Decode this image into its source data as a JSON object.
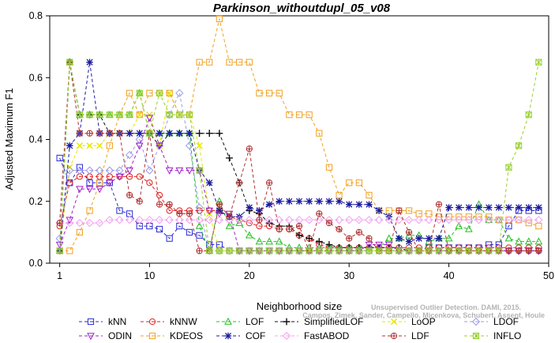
{
  "chart_data": {
    "type": "line",
    "title": "Parkinson_withoutdupl_05_v08",
    "xlabel": "Neighborhood size",
    "ylabel": "Adjusted Maximum F1",
    "xlim": [
      0,
      50
    ],
    "ylim": [
      0,
      0.8
    ],
    "x_ticks": [
      1,
      10,
      20,
      30,
      40,
      50
    ],
    "y_ticks": [
      0.0,
      0.2,
      0.4,
      0.6,
      0.8
    ],
    "grid": false,
    "legend_position": "bottom",
    "credit_line1": "Unsupervised Outlier Detection. DAMI, 2015.",
    "credit_line2": "Campos, Zimek, Sander, Campello, Micenkova, Schubert, Assent, Houle",
    "series": [
      {
        "name": "kNN",
        "color": "#2a2ad4",
        "marker": "square",
        "x": [
          1,
          2,
          3,
          4,
          5,
          6,
          7,
          8,
          9,
          10,
          11,
          12,
          13,
          14,
          15,
          16,
          17,
          18,
          19,
          20,
          21,
          22,
          23,
          24,
          25,
          26,
          27,
          28,
          29,
          30,
          31,
          32,
          33,
          34,
          35,
          36,
          37,
          38,
          39,
          40,
          41,
          42,
          43,
          44,
          45,
          46,
          47,
          48,
          49
        ],
        "y": [
          0.34,
          0.26,
          0.31,
          0.26,
          0.26,
          0.26,
          0.17,
          0.16,
          0.12,
          0.12,
          0.11,
          0.08,
          0.12,
          0.1,
          0.09,
          0.06,
          0.06,
          0.04,
          0.04,
          0.04,
          0.04,
          0.04,
          0.04,
          0.04,
          0.04,
          0.04,
          0.04,
          0.04,
          0.04,
          0.04,
          0.04,
          0.04,
          0.04,
          0.04,
          0.04,
          0.04,
          0.04,
          0.05,
          0.05,
          0.05,
          0.05,
          0.05,
          0.05,
          0.06,
          0.06,
          0.12,
          0.17,
          0.17,
          0.17
        ]
      },
      {
        "name": "kNNW",
        "color": "#e02020",
        "marker": "circle",
        "x": [
          1,
          2,
          3,
          4,
          5,
          6,
          7,
          8,
          9,
          10,
          11,
          12,
          13,
          14,
          15,
          16,
          17,
          18,
          19,
          20,
          21,
          22,
          23,
          24,
          25,
          26,
          27,
          28,
          29,
          30,
          31,
          32,
          33,
          34,
          35,
          36,
          37,
          38,
          39,
          40,
          41,
          42,
          43,
          44,
          45,
          46,
          47,
          48,
          49
        ],
        "y": [
          0.12,
          0.26,
          0.28,
          0.28,
          0.28,
          0.28,
          0.28,
          0.28,
          0.28,
          0.26,
          0.22,
          0.17,
          0.17,
          0.17,
          0.17,
          0.17,
          0.17,
          0.15,
          0.14,
          0.13,
          0.12,
          0.12,
          0.11,
          0.11,
          0.09,
          0.08,
          0.06,
          0.05,
          0.05,
          0.05,
          0.05,
          0.05,
          0.05,
          0.05,
          0.05,
          0.05,
          0.05,
          0.05,
          0.05,
          0.05,
          0.05,
          0.05,
          0.05,
          0.05,
          0.05,
          0.05,
          0.05,
          0.05,
          0.05
        ]
      },
      {
        "name": "LOF",
        "color": "#20c020",
        "marker": "triangle",
        "x": [
          1,
          2,
          3,
          4,
          5,
          6,
          7,
          8,
          9,
          10,
          11,
          12,
          13,
          14,
          15,
          16,
          17,
          18,
          19,
          20,
          21,
          22,
          23,
          24,
          25,
          26,
          27,
          28,
          29,
          30,
          31,
          32,
          33,
          34,
          35,
          36,
          37,
          38,
          39,
          40,
          41,
          42,
          43,
          44,
          45,
          46,
          47,
          48,
          49
        ],
        "y": [
          0.04,
          0.65,
          0.48,
          0.48,
          0.48,
          0.48,
          0.48,
          0.48,
          0.55,
          0.42,
          0.42,
          0.42,
          0.42,
          0.42,
          0.12,
          0.04,
          0.2,
          0.12,
          0.13,
          0.09,
          0.07,
          0.07,
          0.07,
          0.05,
          0.05,
          0.05,
          0.05,
          0.05,
          0.05,
          0.05,
          0.05,
          0.05,
          0.05,
          0.08,
          0.08,
          0.09,
          0.09,
          0.07,
          0.08,
          0.08,
          0.12,
          0.11,
          0.19,
          0.14,
          0.14,
          0.08,
          0.07,
          0.07,
          0.07
        ]
      },
      {
        "name": "SimplifiedLOF",
        "color": "#101010",
        "marker": "plus",
        "x": [
          1,
          2,
          3,
          4,
          5,
          6,
          7,
          8,
          9,
          10,
          11,
          12,
          13,
          14,
          15,
          16,
          17,
          18,
          19,
          20,
          21,
          22,
          23,
          24,
          25,
          26,
          27,
          28,
          29,
          30,
          31,
          32,
          33,
          34,
          35,
          36,
          37,
          38,
          39,
          40,
          41,
          42,
          43,
          44,
          45,
          46,
          47,
          48,
          49
        ],
        "y": [
          0.04,
          0.65,
          0.48,
          0.48,
          0.48,
          0.42,
          0.42,
          0.42,
          0.42,
          0.42,
          0.38,
          0.42,
          0.42,
          0.42,
          0.42,
          0.42,
          0.42,
          0.34,
          0.26,
          0.17,
          0.16,
          0.13,
          0.12,
          0.12,
          0.09,
          0.08,
          0.07,
          0.06,
          0.05,
          0.05,
          0.05,
          0.05,
          0.05,
          0.05,
          0.05,
          0.04,
          0.04,
          0.04,
          0.04,
          0.04,
          0.04,
          0.04,
          0.04,
          0.04,
          0.04,
          0.04,
          0.04,
          0.04,
          0.04
        ]
      },
      {
        "name": "LoOP",
        "color": "#e6e600",
        "marker": "x",
        "x": [
          1,
          2,
          3,
          4,
          5,
          6,
          7,
          8,
          9,
          10,
          11,
          12,
          13,
          14,
          15,
          16,
          17,
          18,
          19,
          20,
          21,
          22,
          23,
          24,
          25,
          26,
          27,
          28,
          29,
          30,
          31,
          32,
          33,
          34,
          35,
          36,
          37,
          38,
          39,
          40,
          41,
          42,
          43,
          44,
          45,
          46,
          47,
          48,
          49
        ],
        "y": [
          0.04,
          0.31,
          0.38,
          0.38,
          0.38,
          0.42,
          0.42,
          0.42,
          0.48,
          0.48,
          0.38,
          0.55,
          0.48,
          0.48,
          0.38,
          0.16,
          0.04,
          0.04,
          0.04,
          0.04,
          0.04,
          0.04,
          0.04,
          0.04,
          0.04,
          0.04,
          0.04,
          0.04,
          0.04,
          0.04,
          0.04,
          0.04,
          0.04,
          0.04,
          0.04,
          0.04,
          0.04,
          0.04,
          0.04,
          0.04,
          0.04,
          0.04,
          0.04,
          0.04,
          0.04,
          0.04,
          0.04,
          0.04,
          0.04
        ]
      },
      {
        "name": "LDOF",
        "color": "#9a9ae8",
        "marker": "diamond",
        "x": [
          1,
          2,
          3,
          4,
          5,
          6,
          7,
          8,
          9,
          10,
          11,
          12,
          13,
          14,
          15,
          16,
          17,
          18,
          19,
          20,
          21,
          22,
          23,
          24,
          25,
          26,
          27,
          28,
          29,
          30,
          31,
          32,
          33,
          34,
          35,
          36,
          37,
          38,
          39,
          40,
          41,
          42,
          43,
          44,
          45,
          46,
          47,
          48,
          49
        ],
        "y": [
          0.08,
          0.3,
          0.3,
          0.3,
          0.3,
          0.3,
          0.3,
          0.35,
          0.4,
          0.3,
          0.38,
          0.48,
          0.55,
          0.38,
          0.18,
          0.04,
          0.04,
          0.04,
          0.04,
          0.04,
          0.04,
          0.04,
          0.04,
          0.04,
          0.04,
          0.04,
          0.04,
          0.04,
          0.04,
          0.04,
          0.04,
          0.04,
          0.04,
          0.04,
          0.04,
          0.04,
          0.04,
          0.04,
          0.04,
          0.04,
          0.04,
          0.04,
          0.04,
          0.04,
          0.04,
          0.04,
          0.04,
          0.04,
          0.04
        ]
      },
      {
        "name": "ODIN",
        "color": "#a020c8",
        "marker": "triangle-down",
        "x": [
          1,
          2,
          3,
          4,
          5,
          6,
          7,
          8,
          9,
          10,
          11,
          12,
          13,
          14,
          15,
          16,
          17,
          18,
          19,
          20,
          21,
          22,
          23,
          24,
          25,
          26,
          27,
          28,
          29,
          30,
          31,
          32,
          33,
          34,
          35,
          36,
          37,
          38,
          39,
          40,
          41,
          42,
          43,
          44,
          45,
          46,
          47,
          48,
          49
        ],
        "y": [
          0.06,
          0.14,
          0.24,
          0.24,
          0.24,
          0.26,
          0.28,
          0.3,
          0.38,
          0.47,
          0.38,
          0.3,
          0.3,
          0.3,
          0.3,
          0.17,
          0.16,
          0.16,
          0.04,
          0.04,
          0.04,
          0.04,
          0.04,
          0.04,
          0.04,
          0.04,
          0.04,
          0.04,
          0.04,
          0.04,
          0.04,
          0.06,
          0.06,
          0.06,
          0.04,
          0.04,
          0.04,
          0.04,
          0.04,
          0.04,
          0.04,
          0.04,
          0.04,
          0.04,
          0.04,
          0.04,
          0.04,
          0.04,
          0.04
        ]
      },
      {
        "name": "KDEOS",
        "color": "#f0a020",
        "marker": "square",
        "x": [
          1,
          2,
          3,
          4,
          5,
          6,
          7,
          8,
          9,
          10,
          11,
          12,
          13,
          14,
          15,
          16,
          17,
          18,
          19,
          20,
          21,
          22,
          23,
          24,
          25,
          26,
          27,
          28,
          29,
          30,
          31,
          32,
          33,
          34,
          35,
          36,
          37,
          38,
          39,
          40,
          41,
          42,
          43,
          44,
          45,
          46,
          47,
          48,
          49
        ],
        "y": [
          0.04,
          0.04,
          0.1,
          0.17,
          0.26,
          0.38,
          0.48,
          0.55,
          0.48,
          0.55,
          0.55,
          0.55,
          0.48,
          0.48,
          0.65,
          0.65,
          0.79,
          0.65,
          0.65,
          0.65,
          0.55,
          0.55,
          0.55,
          0.48,
          0.48,
          0.48,
          0.42,
          0.31,
          0.22,
          0.26,
          0.26,
          0.22,
          0.17,
          0.17,
          0.17,
          0.17,
          0.16,
          0.16,
          0.15,
          0.15,
          0.15,
          0.15,
          0.15,
          0.15,
          0.14,
          0.14,
          0.14,
          0.13,
          0.12
        ]
      },
      {
        "name": "COF",
        "color": "#1a1aa0",
        "marker": "star",
        "x": [
          1,
          2,
          3,
          4,
          5,
          6,
          7,
          8,
          9,
          10,
          11,
          12,
          13,
          14,
          15,
          16,
          17,
          18,
          19,
          20,
          21,
          22,
          23,
          24,
          25,
          26,
          27,
          28,
          29,
          30,
          31,
          32,
          33,
          34,
          35,
          36,
          37,
          38,
          39,
          40,
          41,
          42,
          43,
          44,
          45,
          46,
          47,
          48,
          49
        ],
        "y": [
          0.04,
          0.38,
          0.42,
          0.65,
          0.42,
          0.42,
          0.42,
          0.42,
          0.42,
          0.42,
          0.42,
          0.42,
          0.42,
          0.42,
          0.3,
          0.26,
          0.17,
          0.15,
          0.15,
          0.18,
          0.17,
          0.19,
          0.2,
          0.2,
          0.2,
          0.2,
          0.2,
          0.2,
          0.2,
          0.19,
          0.19,
          0.19,
          0.17,
          0.15,
          0.08,
          0.07,
          0.08,
          0.08,
          0.08,
          0.18,
          0.18,
          0.18,
          0.18,
          0.18,
          0.18,
          0.18,
          0.18,
          0.18,
          0.18
        ]
      },
      {
        "name": "FastABOD",
        "color": "#f0a0f0",
        "marker": "diamond",
        "x": [
          1,
          2,
          3,
          4,
          5,
          6,
          7,
          8,
          9,
          10,
          11,
          12,
          13,
          14,
          15,
          16,
          17,
          18,
          19,
          20,
          21,
          22,
          23,
          24,
          25,
          26,
          27,
          28,
          29,
          30,
          31,
          32,
          33,
          34,
          35,
          36,
          37,
          38,
          39,
          40,
          41,
          42,
          43,
          44,
          45,
          46,
          47,
          48,
          49
        ],
        "y": [
          0.13,
          0.13,
          0.13,
          0.13,
          0.13,
          0.14,
          0.14,
          0.14,
          0.14,
          0.14,
          0.14,
          0.14,
          0.14,
          0.14,
          0.14,
          0.14,
          0.14,
          0.14,
          0.14,
          0.14,
          0.14,
          0.14,
          0.14,
          0.14,
          0.14,
          0.14,
          0.14,
          0.14,
          0.14,
          0.14,
          0.14,
          0.14,
          0.14,
          0.14,
          0.14,
          0.14,
          0.14,
          0.14,
          0.14,
          0.14,
          0.14,
          0.14,
          0.14,
          0.14,
          0.14,
          0.14,
          0.14,
          0.14,
          0.14
        ]
      },
      {
        "name": "LDF",
        "color": "#b03030",
        "marker": "circle-plus",
        "x": [
          1,
          2,
          3,
          4,
          5,
          6,
          7,
          8,
          9,
          10,
          11,
          12,
          13,
          14,
          15,
          16,
          17,
          18,
          19,
          20,
          21,
          22,
          23,
          24,
          25,
          26,
          27,
          28,
          29,
          30,
          31,
          32,
          33,
          34,
          35,
          36,
          37,
          38,
          39,
          40,
          41,
          42,
          43,
          44,
          45,
          46,
          47,
          48,
          49
        ],
        "y": [
          0.13,
          0.65,
          0.42,
          0.42,
          0.42,
          0.42,
          0.42,
          0.22,
          0.2,
          0.42,
          0.19,
          0.19,
          0.16,
          0.16,
          0.04,
          0.04,
          0.19,
          0.15,
          0.26,
          0.37,
          0.14,
          0.26,
          0.11,
          0.11,
          0.12,
          0.04,
          0.16,
          0.13,
          0.11,
          0.08,
          0.1,
          0.08,
          0.04,
          0.04,
          0.17,
          0.1,
          0.04,
          0.04,
          0.19,
          0.04,
          0.04,
          0.04,
          0.04,
          0.04,
          0.04,
          0.04,
          0.04,
          0.04,
          0.04
        ]
      },
      {
        "name": "INFLO",
        "color": "#98d030",
        "marker": "star-box",
        "x": [
          1,
          2,
          3,
          4,
          5,
          6,
          7,
          8,
          9,
          10,
          11,
          12,
          13,
          14,
          15,
          16,
          17,
          18,
          19,
          20,
          21,
          22,
          23,
          24,
          25,
          26,
          27,
          28,
          29,
          30,
          31,
          32,
          33,
          34,
          35,
          36,
          37,
          38,
          39,
          40,
          41,
          42,
          43,
          44,
          45,
          46,
          47,
          48,
          49
        ],
        "y": [
          0.04,
          0.65,
          0.48,
          0.48,
          0.48,
          0.48,
          0.48,
          0.48,
          0.55,
          0.42,
          0.55,
          0.48,
          0.48,
          0.48,
          0.3,
          0.04,
          0.04,
          0.04,
          0.04,
          0.04,
          0.04,
          0.04,
          0.04,
          0.04,
          0.04,
          0.04,
          0.04,
          0.04,
          0.04,
          0.04,
          0.04,
          0.04,
          0.04,
          0.04,
          0.04,
          0.04,
          0.04,
          0.04,
          0.04,
          0.04,
          0.04,
          0.04,
          0.04,
          0.04,
          0.04,
          0.31,
          0.38,
          0.48,
          0.65
        ]
      }
    ]
  }
}
